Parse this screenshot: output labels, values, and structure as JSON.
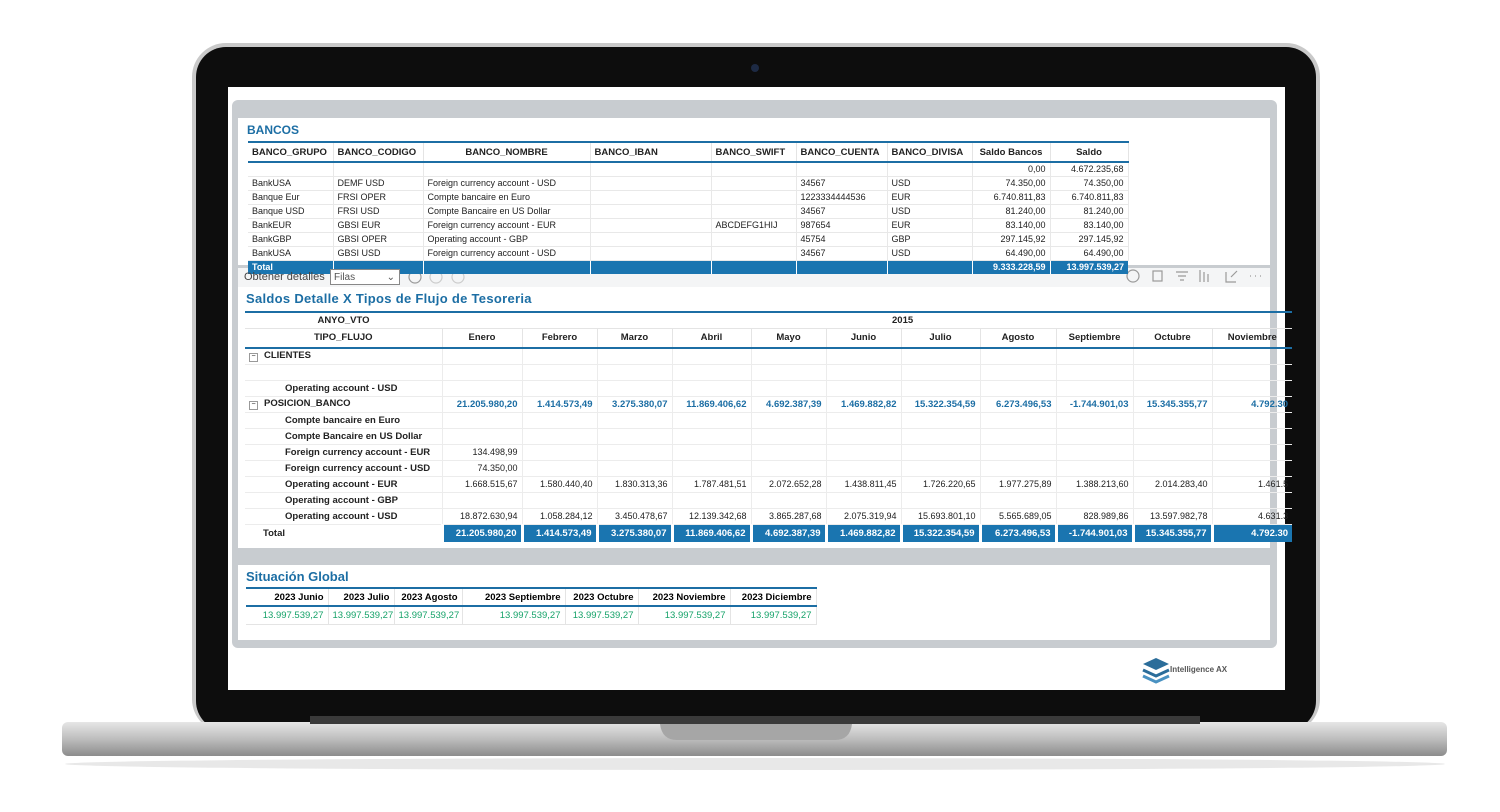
{
  "bancos": {
    "title": "BANCOS",
    "columns": [
      "BANCO_GRUPO",
      "BANCO_CODIGO",
      "BANCO_NOMBRE",
      "BANCO_IBAN",
      "BANCO_SWIFT",
      "BANCO_CUENTA",
      "BANCO_DIVISA",
      "Saldo Bancos",
      "Saldo"
    ],
    "rows": [
      [
        null,
        null,
        null,
        null,
        null,
        null,
        null,
        "0,00",
        "4.672.235,68"
      ],
      [
        "BankUSA",
        "DEMF USD",
        "Foreign currency account - USD",
        null,
        null,
        "34567",
        "USD",
        "74.350,00",
        "74.350,00"
      ],
      [
        "Banque Eur",
        "FRSI OPER",
        "Compte bancaire en Euro",
        null,
        null,
        "1223334444536",
        "EUR",
        "6.740.811,83",
        "6.740.811,83"
      ],
      [
        "Banque USD",
        "FRSI USD",
        "Compte Bancaire en US Dollar",
        null,
        null,
        "34567",
        "USD",
        "81.240,00",
        "81.240,00"
      ],
      [
        "BankEUR",
        "GBSI EUR",
        "Foreign currency account - EUR",
        null,
        "ABCDEFG1HIJ",
        "987654",
        "EUR",
        "83.140,00",
        "83.140,00"
      ],
      [
        "BankGBP",
        "GBSI OPER",
        "Operating account - GBP",
        null,
        null,
        "45754",
        "GBP",
        "297.145,92",
        "297.145,92"
      ],
      [
        "BankUSA",
        "GBSI USD",
        "Foreign currency account - USD",
        null,
        null,
        "34567",
        "USD",
        "64.490,00",
        "64.490,00"
      ]
    ],
    "total": {
      "label": "Total",
      "values": [
        "9.333.228,59",
        "13.997.539,27"
      ]
    }
  },
  "toolbar": {
    "label": "Obtener detalles",
    "select": "Filas"
  },
  "saldos": {
    "title": "Saldos Detalle X Tipos de Flujo de Tesoreria",
    "row_header": "ANYO_VTO",
    "year": "2015",
    "col_header": "TIPO_FLUJO",
    "months": [
      "Enero",
      "Febrero",
      "Marzo",
      "Abril",
      "Mayo",
      "Junio",
      "Julio",
      "Agosto",
      "Septiembre",
      "Octubre",
      "Noviembre"
    ],
    "rows": [
      {
        "label": "CLIENTES",
        "group": true,
        "values": []
      },
      {
        "label": "Operating account - USD",
        "group": false,
        "values": []
      },
      {
        "label": "POSICION_BANCO",
        "group": true,
        "values": [
          "21.205.980,20",
          "1.414.573,49",
          "3.275.380,07",
          "11.869.406,62",
          "4.692.387,39",
          "1.469.882,82",
          "15.322.354,59",
          "6.273.496,53",
          "-1.744.901,03",
          "15.345.355,77",
          "4.792.30"
        ]
      },
      {
        "label": "Compte bancaire en Euro",
        "group": false,
        "values": []
      },
      {
        "label": "Compte Bancaire en US Dollar",
        "group": false,
        "values": []
      },
      {
        "label": "Foreign currency account - EUR",
        "group": false,
        "values": [
          "134.498,99"
        ]
      },
      {
        "label": "Foreign currency account - USD",
        "group": false,
        "values": [
          "74.350,00"
        ]
      },
      {
        "label": "Operating account - EUR",
        "group": false,
        "values": [
          "1.668.515,67",
          "1.580.440,40",
          "1.830.313,36",
          "1.787.481,51",
          "2.072.652,28",
          "1.438.811,45",
          "1.726.220,65",
          "1.977.275,89",
          "1.388.213,60",
          "2.014.283,40",
          "1.461.5"
        ]
      },
      {
        "label": "Operating account - GBP",
        "group": false,
        "values": []
      },
      {
        "label": "Operating account - USD",
        "group": false,
        "values": [
          "18.872.630,94",
          "1.058.284,12",
          "3.450.478,67",
          "12.139.342,68",
          "3.865.287,68",
          "2.075.319,94",
          "15.693.801,10",
          "5.565.689,05",
          "828.989,86",
          "13.597.982,78",
          "4.631.3"
        ]
      }
    ],
    "total": {
      "label": "Total",
      "values": [
        "21.205.980,20",
        "1.414.573,49",
        "3.275.380,07",
        "11.869.406,62",
        "4.692.387,39",
        "1.469.882,82",
        "15.322.354,59",
        "6.273.496,53",
        "-1.744.901,03",
        "15.345.355,77",
        "4.792.30"
      ]
    }
  },
  "situacion": {
    "title": "Situación Global",
    "columns": [
      "2023 Junio",
      "2023 Julio",
      "2023 Agosto",
      "2023 Septiembre",
      "2023 Octubre",
      "2023 Noviembre",
      "2023 Diciembre"
    ],
    "values": [
      "13.997.539,27",
      "13.997.539,27",
      "13.997.539,27",
      "13.997.539,27",
      "13.997.539,27",
      "13.997.539,27",
      "13.997.539,27"
    ]
  },
  "logo": "Intelligence AX"
}
